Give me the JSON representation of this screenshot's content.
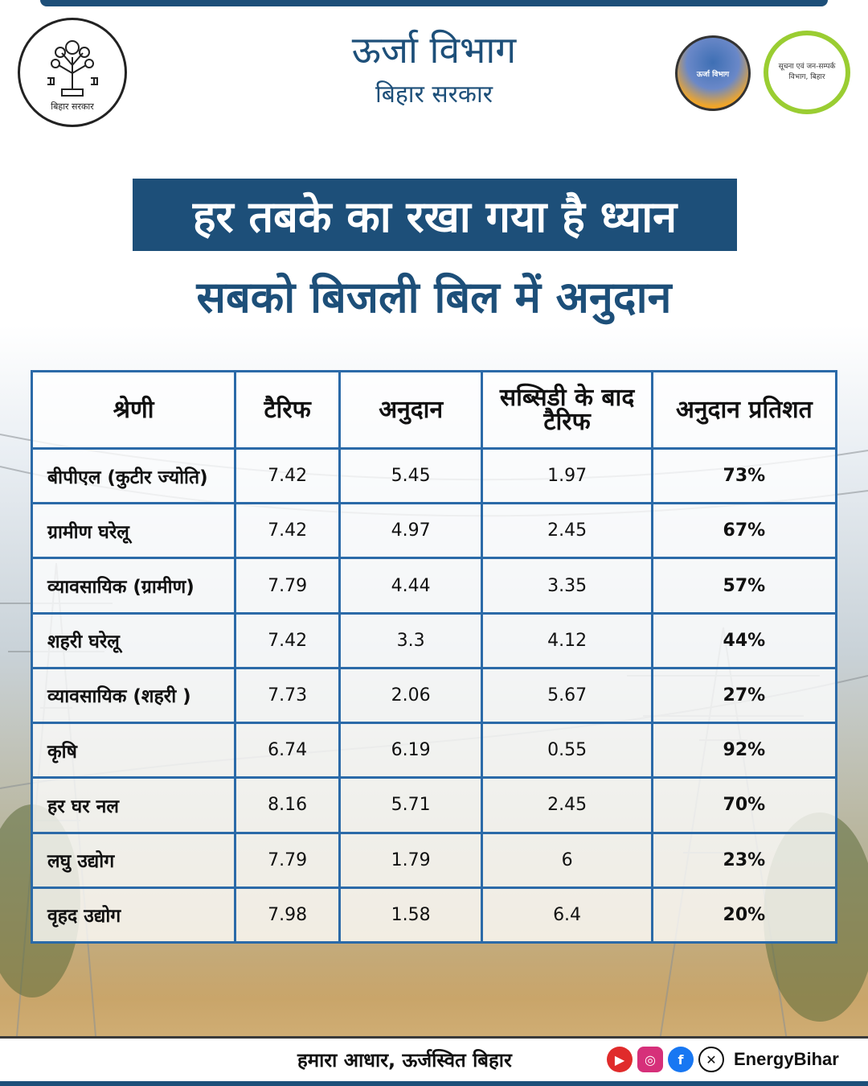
{
  "header": {
    "emblem_caption": "बिहार सरकार",
    "title": "ऊर्जा विभाग",
    "subtitle": "बिहार सरकार",
    "logo1_text": "ऊर्जा विभाग",
    "logo2_text": "सूचना एवं जन-सम्पर्क विभाग, बिहार"
  },
  "headline": "हर तबके का रखा गया है ध्यान",
  "subheadline": "सबको बिजली बिल में अनुदान",
  "table": {
    "headers": [
      "श्रेणी",
      "टैरिफ",
      "अनुदान",
      "सब्सिडी के बाद टैरिफ",
      "अनुदान प्रतिशत"
    ],
    "rows": [
      [
        "बीपीएल (कुटीर ज्योति)",
        "7.42",
        "5.45",
        "1.97",
        "73%"
      ],
      [
        "ग्रामीण घरेलू",
        "7.42",
        "4.97",
        "2.45",
        "67%"
      ],
      [
        "व्यावसायिक (ग्रामीण)",
        "7.79",
        "4.44",
        "3.35",
        "57%"
      ],
      [
        "शहरी घरेलू",
        "7.42",
        "3.3",
        "4.12",
        "44%"
      ],
      [
        "व्यावसायिक (शहरी )",
        "7.73",
        "2.06",
        "5.67",
        "27%"
      ],
      [
        "कृषि",
        "6.74",
        "6.19",
        "0.55",
        "92%"
      ],
      [
        "हर घर नल",
        "8.16",
        "5.71",
        "2.45",
        "70%"
      ],
      [
        "लघु उद्योग",
        "7.79",
        "1.79",
        "6",
        "23%"
      ],
      [
        "वृहद उद्योग",
        "7.98",
        "1.58",
        "6.4",
        "20%"
      ]
    ]
  },
  "footer": {
    "slogan": "हमारा आधार, ऊर्जस्वित बिहार",
    "handle": "EnergyBihar",
    "icons": [
      "youtube-icon",
      "instagram-icon",
      "facebook-icon",
      "x-icon"
    ]
  },
  "colors": {
    "primary": "#1d4f79",
    "table_border": "#2b6aa8"
  }
}
